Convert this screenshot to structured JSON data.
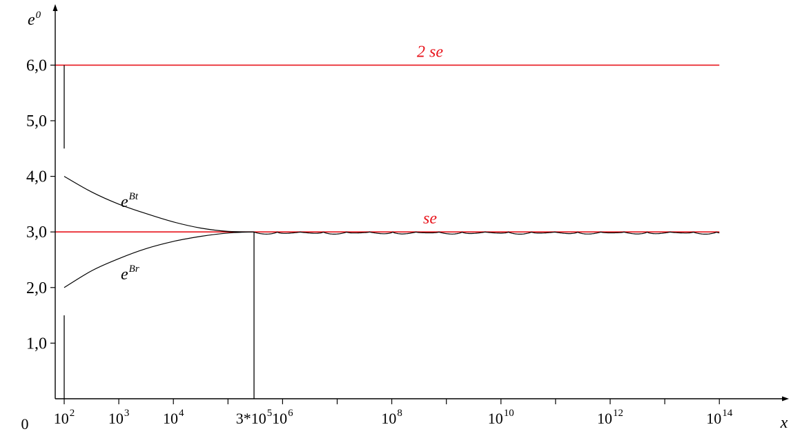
{
  "chart_data": {
    "type": "line",
    "ylabel": "e",
    "ylabel_superscript": "0",
    "xlabel": "x",
    "origin_label": "0",
    "y_scale": "linear",
    "ylim": [
      0,
      7
    ],
    "x_scale": "log10",
    "xlim_log10": [
      1.7,
      14.6
    ],
    "grid": false,
    "y_ticks": [
      {
        "value": 1,
        "label": "1,0"
      },
      {
        "value": 2,
        "label": "2,0"
      },
      {
        "value": 3,
        "label": "3,0"
      },
      {
        "value": 4,
        "label": "4,0"
      },
      {
        "value": 5,
        "label": "5,0"
      },
      {
        "value": 6,
        "label": "6,0"
      }
    ],
    "x_ticks_log10": [
      2,
      3,
      4,
      5,
      6,
      7,
      8,
      9,
      10,
      11,
      12,
      13,
      14
    ],
    "x_labels": [
      {
        "log10": 2,
        "base": "10",
        "exp": "2"
      },
      {
        "log10": 3,
        "base": "10",
        "exp": "3"
      },
      {
        "log10": 4,
        "base": "10",
        "exp": "4"
      },
      {
        "log10": 5.477,
        "base": "3*10",
        "exp": "5"
      },
      {
        "log10": 6,
        "base": "10",
        "exp": "6"
      },
      {
        "log10": 8,
        "base": "10",
        "exp": "8"
      },
      {
        "log10": 10,
        "base": "10",
        "exp": "10"
      },
      {
        "log10": 12,
        "base": "10",
        "exp": "12"
      },
      {
        "log10": 14,
        "base": "10",
        "exp": "14"
      }
    ],
    "reference_lines": [
      {
        "label": "2 se",
        "y": 6,
        "color": "#e8141c"
      },
      {
        "label": "se",
        "y": 3,
        "color": "#e8141c"
      }
    ],
    "series": [
      {
        "name": "e",
        "name_superscript": "Bt",
        "color": "#000000",
        "x_log10": [
          2.0,
          2.5,
          3.0,
          3.5,
          4.0,
          4.5,
          5.0,
          5.477
        ],
        "y": [
          4.0,
          3.72,
          3.5,
          3.33,
          3.18,
          3.07,
          3.01,
          3.0
        ]
      },
      {
        "name": "e",
        "name_superscript": "Br",
        "color": "#000000",
        "x_log10": [
          2.0,
          2.5,
          3.0,
          3.5,
          4.0,
          4.5,
          5.0,
          5.477
        ],
        "y": [
          2.0,
          2.3,
          2.52,
          2.7,
          2.83,
          2.92,
          2.98,
          3.0
        ]
      }
    ],
    "oscillation": {
      "x_log10_start": 5.477,
      "x_log10_end": 14.0,
      "center_y": 3.0,
      "amplitude": 0.04,
      "color": "#000000"
    },
    "markers": [
      {
        "x_log10": 2.0,
        "y_from": 4.5,
        "y_to": 6.0
      },
      {
        "x_log10": 2.0,
        "y_from": 0.0,
        "y_to": 1.5
      },
      {
        "x_log10": 5.477,
        "y_from": 0.0,
        "y_to": 3.0
      }
    ]
  }
}
